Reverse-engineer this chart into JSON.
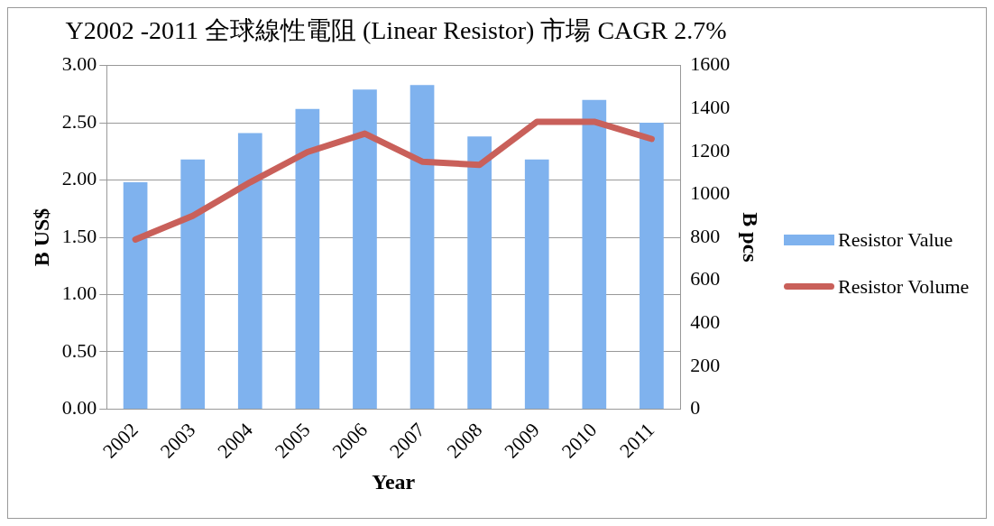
{
  "chart_data": {
    "type": "bar",
    "title": "Y2002 -2011 全球線性電阻 (Linear Resistor) 市場 CAGR 2.7%",
    "xlabel": "Year",
    "ylabel": "B US$",
    "y2label": "B pcs",
    "categories": [
      "2002",
      "2003",
      "2004",
      "2005",
      "2006",
      "2007",
      "2008",
      "2009",
      "2010",
      "2011"
    ],
    "series": [
      {
        "name": "Resistor Value",
        "color": "#7fb2ee",
        "values": [
          1.98,
          2.18,
          2.41,
          2.62,
          2.79,
          2.83,
          2.38,
          2.18,
          2.7,
          2.5
        ]
      },
      {
        "name": "Resistor Volume",
        "type": "line",
        "axis": "y2",
        "color": "#c9605a",
        "values": [
          790,
          900,
          1056,
          1197,
          1283,
          1152,
          1137,
          1338,
          1338,
          1258
        ]
      }
    ],
    "ylim": [
      0,
      3
    ],
    "yticks": [
      {
        "value": 0,
        "label": "0.00"
      },
      {
        "value": 0.5,
        "label": "0.50"
      },
      {
        "value": 1,
        "label": "1.00"
      },
      {
        "value": 1.5,
        "label": "1.50"
      },
      {
        "value": 2,
        "label": "2.00"
      },
      {
        "value": 2.5,
        "label": "2.50"
      },
      {
        "value": 3,
        "label": "3.00"
      }
    ],
    "y2lim": [
      0,
      1600
    ],
    "y2ticks": [
      0,
      200,
      400,
      600,
      800,
      1000,
      1200,
      1400,
      1600
    ],
    "grid": "y",
    "legend": "right"
  }
}
